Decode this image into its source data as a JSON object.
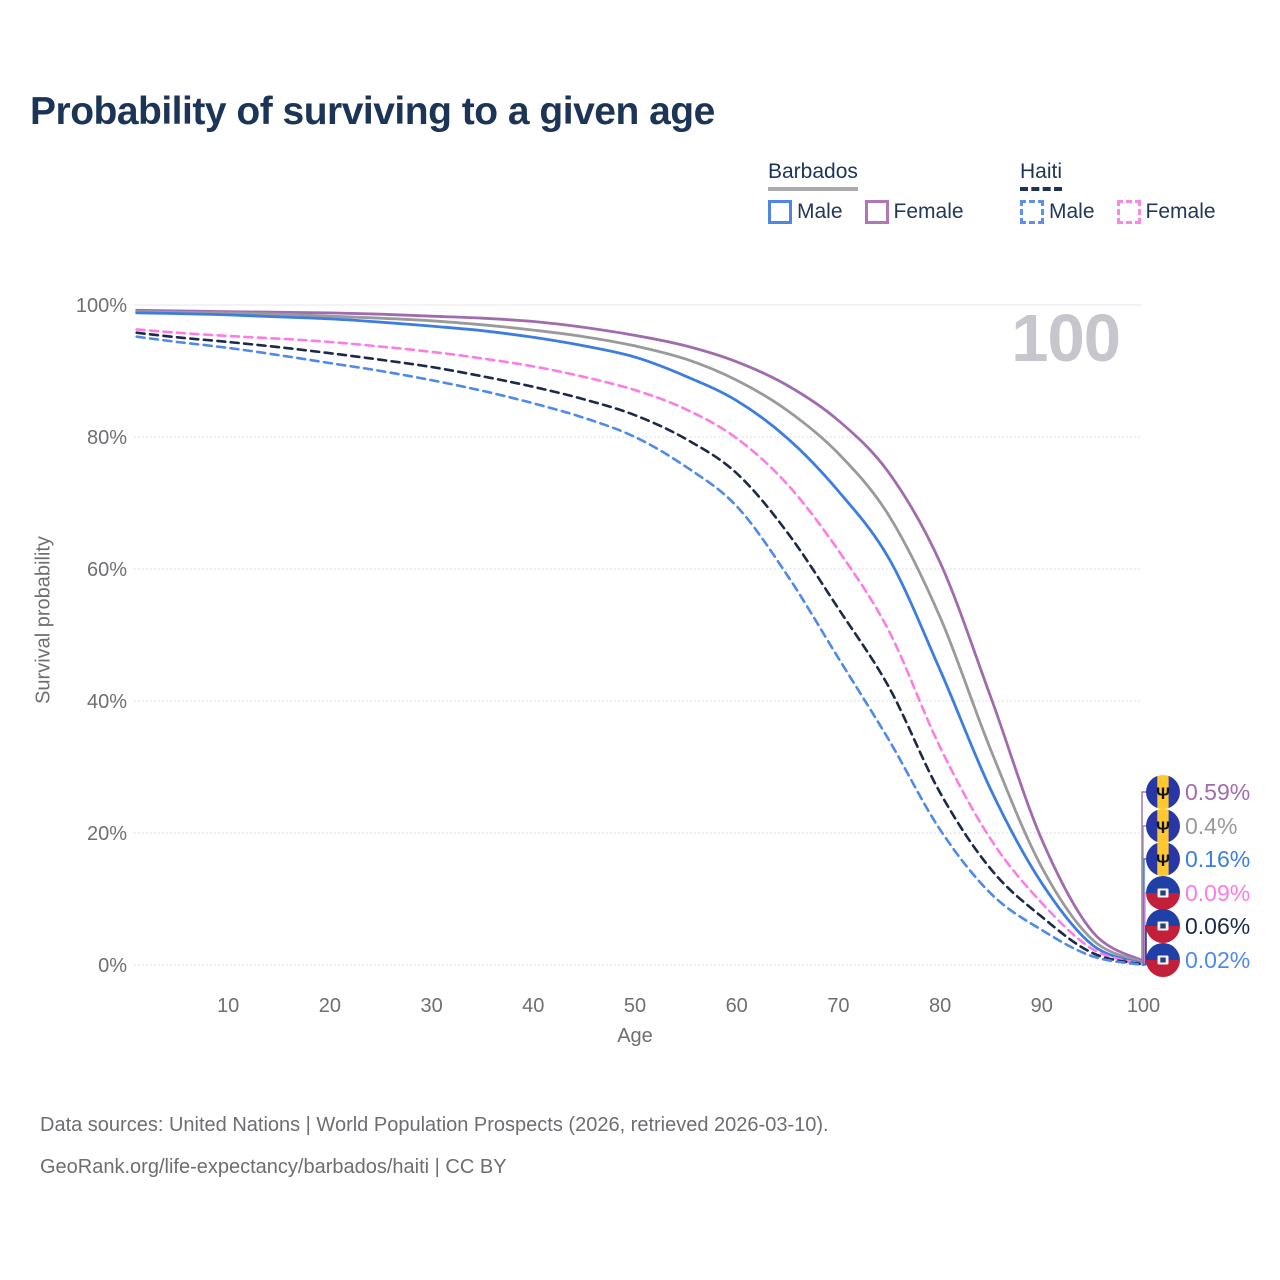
{
  "title": "Probability of surviving to a given age",
  "watermark": "100",
  "legend": {
    "groups": [
      {
        "country": "Barbados",
        "line_style": "solid",
        "underline_color": "#ABABAD",
        "items": [
          {
            "label": "Male",
            "color": "#4F86E3"
          },
          {
            "label": "Female",
            "color": "#B175B8"
          }
        ]
      },
      {
        "country": "Haiti",
        "line_style": "dashed",
        "underline_color": "#1C3557",
        "items": [
          {
            "label": "Male",
            "color": "#5E90E8"
          },
          {
            "label": "Female",
            "color": "#FC85E5"
          }
        ]
      }
    ]
  },
  "chart_data": {
    "type": "line",
    "title": "Probability of surviving to a given age",
    "xlabel": "Age",
    "ylabel": "Survival probability",
    "xlim": [
      1,
      100
    ],
    "ylim": [
      0,
      100
    ],
    "grid": "horizontal",
    "legend_position": "top-right",
    "xticks": [
      10,
      20,
      30,
      40,
      50,
      60,
      70,
      80,
      90,
      100
    ],
    "yticks": [
      0,
      20,
      40,
      60,
      80,
      100
    ],
    "ytick_labels": [
      "0%",
      "20%",
      "40%",
      "60%",
      "80%",
      "100%"
    ],
    "x": [
      1,
      5,
      10,
      15,
      20,
      25,
      30,
      35,
      40,
      45,
      50,
      55,
      60,
      65,
      70,
      75,
      80,
      85,
      90,
      95,
      100
    ],
    "series": [
      {
        "name": "Barbados Female",
        "country": "Barbados",
        "sex": "Female",
        "color": "#A16CAE",
        "dash": false,
        "flag": "barbados",
        "end_label": "0.59%",
        "values": [
          99.2,
          99.1,
          99.0,
          98.9,
          98.8,
          98.6,
          98.3,
          98.0,
          97.5,
          96.6,
          95.4,
          93.8,
          91.4,
          87.8,
          82.5,
          74.5,
          61.0,
          40.5,
          19.0,
          5.0,
          0.59
        ]
      },
      {
        "name": "Barbados Both sexes",
        "country": "Barbados",
        "sex": "Both",
        "color": "#9A9A9C",
        "dash": false,
        "flag": "barbados",
        "end_label": "0.4%",
        "values": [
          99.0,
          98.9,
          98.8,
          98.6,
          98.3,
          98.0,
          97.6,
          97.0,
          96.2,
          95.2,
          93.8,
          91.8,
          88.6,
          84.0,
          77.5,
          68.0,
          52.7,
          32.5,
          14.8,
          3.8,
          0.4
        ]
      },
      {
        "name": "Barbados Male",
        "country": "Barbados",
        "sex": "Male",
        "color": "#3D7DE0",
        "dash": false,
        "flag": "barbados",
        "end_label": "0.16%",
        "values": [
          98.8,
          98.7,
          98.5,
          98.2,
          97.9,
          97.4,
          96.8,
          96.1,
          95.1,
          93.8,
          92.1,
          89.2,
          85.5,
          79.8,
          71.8,
          61.5,
          44.7,
          26.5,
          12.4,
          3.0,
          0.16
        ]
      },
      {
        "name": "Haiti Female",
        "country": "Haiti",
        "sex": "Female",
        "color": "#FB7DE3",
        "dash": true,
        "flag": "haiti",
        "end_label": "0.09%",
        "values": [
          96.3,
          95.8,
          95.3,
          94.9,
          94.4,
          93.7,
          92.9,
          91.9,
          90.7,
          89.1,
          87.1,
          84.2,
          79.8,
          72.8,
          62.8,
          50.5,
          33.0,
          19.0,
          9.4,
          2.4,
          0.09
        ]
      },
      {
        "name": "Haiti Both sexes",
        "country": "Haiti",
        "sex": "Both",
        "color": "#1C2A4A",
        "dash": true,
        "flag": "haiti",
        "end_label": "0.06%",
        "values": [
          95.8,
          95.1,
          94.4,
          93.6,
          92.7,
          91.7,
          90.6,
          89.2,
          87.6,
          85.7,
          83.3,
          79.7,
          74.5,
          65.5,
          54.0,
          42.0,
          26.1,
          14.5,
          7.3,
          1.8,
          0.06
        ]
      },
      {
        "name": "Haiti Male",
        "country": "Haiti",
        "sex": "Male",
        "color": "#4F8AE8",
        "dash": true,
        "flag": "haiti",
        "end_label": "0.02%",
        "values": [
          95.2,
          94.4,
          93.5,
          92.4,
          91.2,
          90.0,
          88.6,
          87.0,
          85.1,
          82.9,
          80.0,
          75.5,
          69.5,
          59.0,
          46.5,
          34.0,
          20.5,
          10.8,
          5.3,
          1.3,
          0.02
        ]
      }
    ],
    "hover_age_indicator": "100"
  },
  "source": {
    "line1": "Data sources: United Nations | World Population Prospects (2026, retrieved 2026-03-10).",
    "line2": "GeoRank.org/life-expectancy/barbados/haiti | CC BY"
  }
}
